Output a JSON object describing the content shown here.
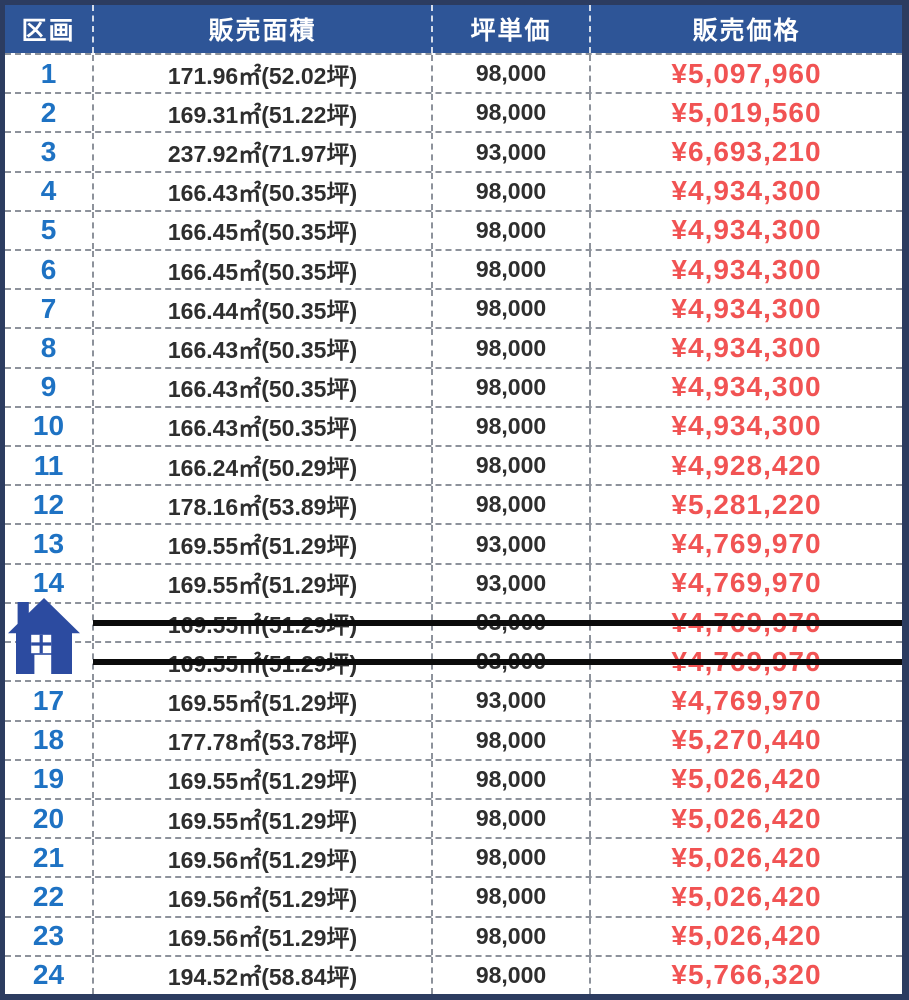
{
  "table": {
    "columns": [
      {
        "key": "lot",
        "label": "区画"
      },
      {
        "key": "area",
        "label": "販売面積"
      },
      {
        "key": "unit_price",
        "label": "坪単価"
      },
      {
        "key": "price",
        "label": "販売価格"
      }
    ],
    "rows": [
      {
        "lot": "1",
        "area": "171.96㎡(52.02坪)",
        "unit_price": "98,000",
        "price": "¥5,097,960",
        "struck": false
      },
      {
        "lot": "2",
        "area": "169.31㎡(51.22坪)",
        "unit_price": "98,000",
        "price": "¥5,019,560",
        "struck": false
      },
      {
        "lot": "3",
        "area": "237.92㎡(71.97坪)",
        "unit_price": "93,000",
        "price": "¥6,693,210",
        "struck": false
      },
      {
        "lot": "4",
        "area": "166.43㎡(50.35坪)",
        "unit_price": "98,000",
        "price": "¥4,934,300",
        "struck": false
      },
      {
        "lot": "5",
        "area": "166.45㎡(50.35坪)",
        "unit_price": "98,000",
        "price": "¥4,934,300",
        "struck": false
      },
      {
        "lot": "6",
        "area": "166.45㎡(50.35坪)",
        "unit_price": "98,000",
        "price": "¥4,934,300",
        "struck": false
      },
      {
        "lot": "7",
        "area": "166.44㎡(50.35坪)",
        "unit_price": "98,000",
        "price": "¥4,934,300",
        "struck": false
      },
      {
        "lot": "8",
        "area": "166.43㎡(50.35坪)",
        "unit_price": "98,000",
        "price": "¥4,934,300",
        "struck": false
      },
      {
        "lot": "9",
        "area": "166.43㎡(50.35坪)",
        "unit_price": "98,000",
        "price": "¥4,934,300",
        "struck": false
      },
      {
        "lot": "10",
        "area": "166.43㎡(50.35坪)",
        "unit_price": "98,000",
        "price": "¥4,934,300",
        "struck": false
      },
      {
        "lot": "11",
        "area": "166.24㎡(50.29坪)",
        "unit_price": "98,000",
        "price": "¥4,928,420",
        "struck": false
      },
      {
        "lot": "12",
        "area": "178.16㎡(53.89坪)",
        "unit_price": "98,000",
        "price": "¥5,281,220",
        "struck": false
      },
      {
        "lot": "13",
        "area": "169.55㎡(51.29坪)",
        "unit_price": "93,000",
        "price": "¥4,769,970",
        "struck": false
      },
      {
        "lot": "14",
        "area": "169.55㎡(51.29坪)",
        "unit_price": "93,000",
        "price": "¥4,769,970",
        "struck": false
      },
      {
        "lot": "",
        "area": "169.55㎡(51.29坪)",
        "unit_price": "93,000",
        "price": "¥4,769,970",
        "struck": true
      },
      {
        "lot": "",
        "area": "169.55㎡(51.29坪)",
        "unit_price": "93,000",
        "price": "¥4,769,970",
        "struck": true
      },
      {
        "lot": "17",
        "area": "169.55㎡(51.29坪)",
        "unit_price": "93,000",
        "price": "¥4,769,970",
        "struck": false
      },
      {
        "lot": "18",
        "area": "177.78㎡(53.78坪)",
        "unit_price": "98,000",
        "price": "¥5,270,440",
        "struck": false
      },
      {
        "lot": "19",
        "area": "169.55㎡(51.29坪)",
        "unit_price": "98,000",
        "price": "¥5,026,420",
        "struck": false
      },
      {
        "lot": "20",
        "area": "169.55㎡(51.29坪)",
        "unit_price": "98,000",
        "price": "¥5,026,420",
        "struck": false
      },
      {
        "lot": "21",
        "area": "169.56㎡(51.29坪)",
        "unit_price": "98,000",
        "price": "¥5,026,420",
        "struck": false
      },
      {
        "lot": "22",
        "area": "169.56㎡(51.29坪)",
        "unit_price": "98,000",
        "price": "¥5,026,420",
        "struck": false
      },
      {
        "lot": "23",
        "area": "169.56㎡(51.29坪)",
        "unit_price": "98,000",
        "price": "¥5,026,420",
        "struck": false
      },
      {
        "lot": "24",
        "area": "194.52㎡(58.84坪)",
        "unit_price": "98,000",
        "price": "¥5,766,320",
        "struck": false
      }
    ]
  },
  "icons": {
    "sold_rows_marker": "house-icon"
  },
  "colors": {
    "outer_border": "#2c3c60",
    "header_fill": "#2e5597",
    "lot_number": "#1e72c3",
    "price": "#f15353",
    "body_text": "#2e2e2e",
    "dash": "#8d929b",
    "house": "#2c4ba0",
    "strike_line": "#0b0b0b"
  }
}
